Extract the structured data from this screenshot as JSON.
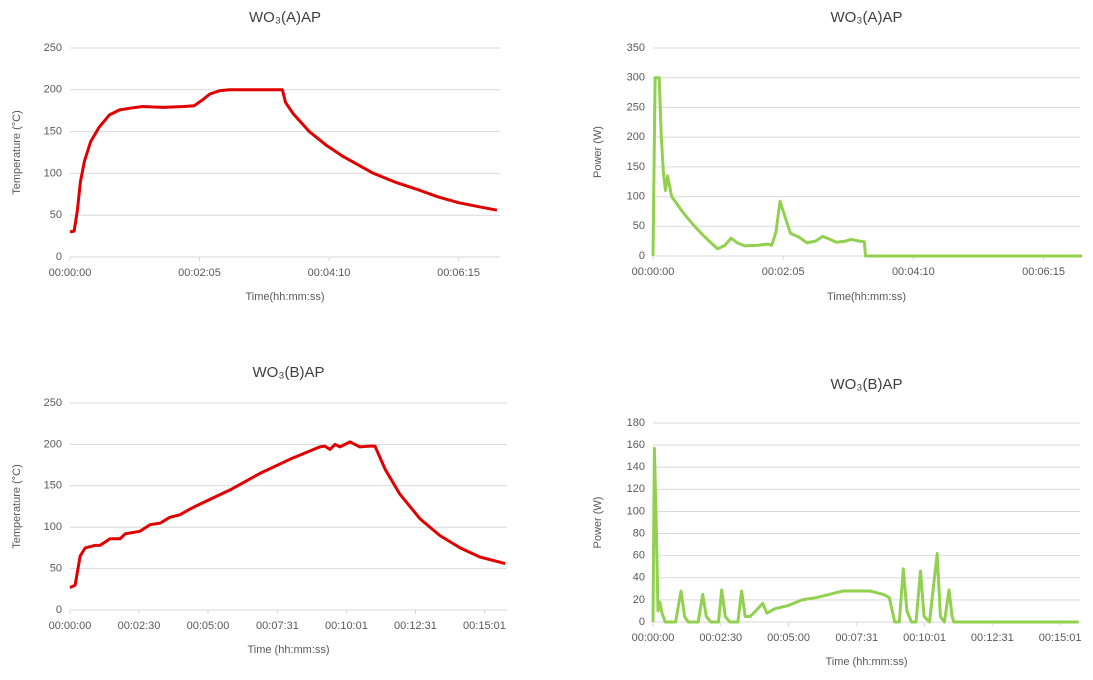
{
  "chart_data": [
    {
      "type": "line",
      "title": "WO₃(A)AP",
      "xlabel": "Time(hh:mm:ss)",
      "ylabel": "Temperature (°C)",
      "color": "#e00000",
      "xlim": [
        0,
        415
      ],
      "xticks": [
        {
          "value": 0,
          "label": "00:00:00"
        },
        {
          "value": 125,
          "label": "00:02:05"
        },
        {
          "value": 250,
          "label": "00:04:10"
        },
        {
          "value": 375,
          "label": "00:06:15"
        }
      ],
      "ylim": [
        0,
        250
      ],
      "yticks": [
        0,
        50,
        100,
        150,
        200,
        250
      ],
      "grid": true,
      "x": [
        0,
        4,
        7,
        10,
        14,
        20,
        28,
        38,
        48,
        58,
        70,
        90,
        110,
        120,
        128,
        135,
        145,
        154,
        170,
        190,
        205,
        208,
        215,
        231,
        248,
        264,
        280,
        293,
        315,
        337,
        355,
        375,
        395,
        412
      ],
      "values": [
        30,
        31,
        55,
        90,
        115,
        138,
        155,
        170,
        176,
        178,
        180,
        179,
        180,
        181,
        188,
        195,
        199,
        200,
        200,
        200,
        200,
        185,
        172,
        150,
        133,
        120,
        109,
        100,
        89,
        80,
        72,
        65,
        60,
        56
      ]
    },
    {
      "type": "line",
      "title": "WO₃(A)AP",
      "xlabel": "Time(hh:mm:ss)",
      "ylabel": "Power (W)",
      "color": "#92d050",
      "xlim": [
        0,
        410
      ],
      "xticks": [
        {
          "value": 0,
          "label": "00:00:00"
        },
        {
          "value": 125,
          "label": "00:02:05"
        },
        {
          "value": 250,
          "label": "00:04:10"
        },
        {
          "value": 375,
          "label": "00:06:15"
        }
      ],
      "ylim": [
        0,
        350
      ],
      "yticks": [
        0,
        50,
        100,
        150,
        200,
        250,
        300,
        350
      ],
      "grid": true,
      "x": [
        0,
        2,
        6,
        8,
        10,
        12,
        14,
        18,
        22,
        28,
        35,
        40,
        48,
        57,
        62,
        69,
        75,
        81,
        88,
        101,
        110,
        114,
        118,
        122,
        126,
        132,
        140,
        148,
        156,
        163,
        170,
        176,
        185,
        190,
        198,
        203,
        204,
        412
      ],
      "values": [
        0,
        300,
        300,
        200,
        140,
        110,
        135,
        100,
        90,
        75,
        60,
        50,
        35,
        20,
        12,
        18,
        30,
        22,
        17,
        18,
        20,
        18,
        40,
        92,
        70,
        38,
        32,
        22,
        25,
        33,
        28,
        23,
        25,
        28,
        25,
        24,
        0,
        0
      ]
    },
    {
      "type": "line",
      "title": "WO₃(B)AP",
      "xlabel": "Time (hh:mm:ss)",
      "ylabel": "Temperature (°C)",
      "color": "#e00000",
      "xlim": [
        0,
        950
      ],
      "xticks": [
        {
          "value": 0,
          "label": "00:00:00"
        },
        {
          "value": 150,
          "label": "00:02:30"
        },
        {
          "value": 300,
          "label": "00:05:00"
        },
        {
          "value": 451,
          "label": "00:07:31"
        },
        {
          "value": 601,
          "label": "00:10:01"
        },
        {
          "value": 751,
          "label": "00:12:31"
        },
        {
          "value": 901,
          "label": "00:15:01"
        }
      ],
      "ylim": [
        0,
        250
      ],
      "yticks": [
        0,
        50,
        100,
        150,
        200,
        250
      ],
      "grid": true,
      "x": [
        0,
        11,
        22,
        33,
        54,
        65,
        76,
        87,
        109,
        120,
        152,
        174,
        196,
        217,
        239,
        261,
        283,
        348,
        413,
        478,
        543,
        554,
        565,
        576,
        587,
        609,
        630,
        652,
        663,
        685,
        717,
        761,
        804,
        848,
        891,
        946
      ],
      "values": [
        27,
        30,
        65,
        75,
        78,
        78,
        82,
        86,
        86,
        92,
        95,
        103,
        105,
        112,
        115,
        122,
        128,
        145,
        165,
        182,
        197,
        198,
        194,
        200,
        197,
        203,
        197,
        198,
        198,
        170,
        140,
        110,
        90,
        75,
        64,
        56
      ]
    },
    {
      "type": "line",
      "title": "WO₃(B)AP",
      "xlabel": "Time (hh:mm:ss)",
      "ylabel": "Power (W)",
      "color": "#92d050",
      "xlim": [
        0,
        945
      ],
      "xticks": [
        {
          "value": 0,
          "label": "00:00:00"
        },
        {
          "value": 150,
          "label": "00:02:30"
        },
        {
          "value": 300,
          "label": "00:05:00"
        },
        {
          "value": 451,
          "label": "00:07:31"
        },
        {
          "value": 601,
          "label": "00:10:01"
        },
        {
          "value": 751,
          "label": "00:12:31"
        },
        {
          "value": 901,
          "label": "00:15:01"
        }
      ],
      "ylim": [
        0,
        180
      ],
      "yticks": [
        0,
        20,
        40,
        60,
        80,
        100,
        120,
        140,
        160,
        180
      ],
      "grid": true,
      "x": [
        0,
        3,
        7,
        11,
        15,
        20,
        27,
        50,
        62,
        70,
        78,
        100,
        110,
        118,
        128,
        145,
        152,
        160,
        170,
        188,
        196,
        204,
        215,
        232,
        243,
        252,
        270,
        300,
        330,
        360,
        390,
        420,
        450,
        480,
        510,
        523,
        535,
        545,
        554,
        562,
        572,
        582,
        592,
        600,
        612,
        629,
        636,
        645,
        655,
        662,
        666,
        942
      ],
      "values": [
        0,
        157,
        90,
        10,
        18,
        8,
        0,
        0,
        28,
        5,
        0,
        0,
        25,
        5,
        0,
        0,
        29,
        5,
        0,
        0,
        28,
        5,
        5,
        12,
        17,
        8,
        12,
        15,
        20,
        22,
        25,
        28,
        28,
        28,
        25,
        22,
        0,
        0,
        48,
        10,
        0,
        0,
        46,
        5,
        0,
        62,
        5,
        0,
        29,
        5,
        0,
        0
      ]
    }
  ]
}
